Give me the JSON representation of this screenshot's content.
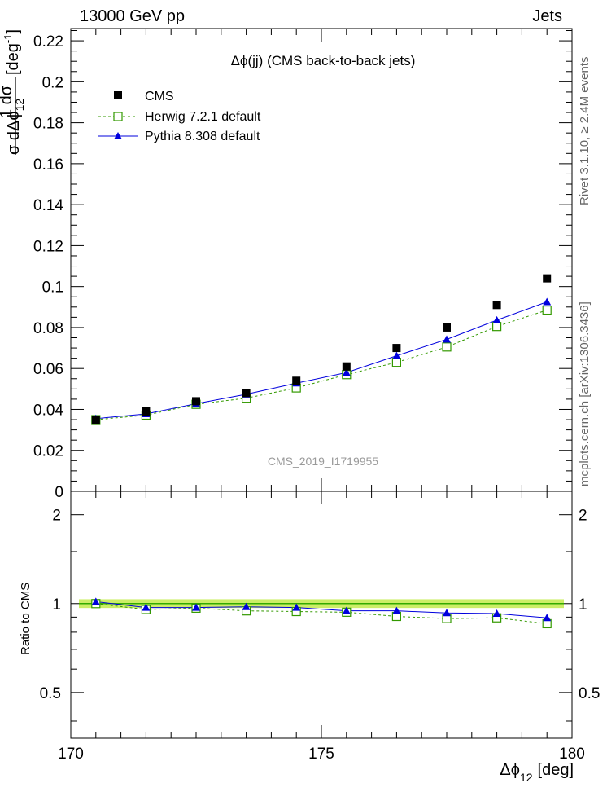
{
  "header": {
    "left": "13000 GeV pp",
    "right": "Jets"
  },
  "side_labels": {
    "rivet": "Rivet 3.1.10, ≥ 2.4M events",
    "mcplots": "mcplots.cern.ch [arXiv:1306.3436]"
  },
  "watermark": "CMS_2019_I1719955",
  "chart_data": [
    {
      "type": "scatter",
      "title": "Δϕ(jj) (CMS back-to-back jets)",
      "ylabel": "1/σ dσ/dΔϕ_12 [deg^-1]",
      "ylabel_parts": {
        "frac_num": "1 dσ",
        "frac_den": "σ dΔϕ",
        "frac_sub": "12",
        "unit": "[deg",
        "unit_sup": "-1",
        "unit_close": "]"
      },
      "xlim": [
        170,
        180
      ],
      "ylim": [
        0,
        0.226
      ],
      "yticks": [
        0,
        0.02,
        0.04,
        0.06,
        0.08,
        0.1,
        0.12,
        0.14,
        0.16,
        0.18,
        0.2,
        0.22
      ],
      "ytick_labels": [
        "0",
        "0.02",
        "0.04",
        "0.06",
        "0.08",
        "0.1",
        "0.12",
        "0.14",
        "0.16",
        "0.18",
        "0.2",
        "0.22"
      ],
      "legend_position": "top-left",
      "x": [
        170.5,
        171.5,
        172.5,
        173.5,
        174.5,
        175.5,
        176.5,
        177.5,
        178.5,
        179.5
      ],
      "series": [
        {
          "name": "CMS",
          "style": "black-square",
          "color": "#000000",
          "values": [
            0.035,
            0.039,
            0.044,
            0.048,
            0.054,
            0.061,
            0.07,
            0.08,
            0.091,
            0.104
          ]
        },
        {
          "name": "Herwig 7.2.1 default",
          "style": "green-open-square-dashed",
          "color": "#339900",
          "values": [
            0.035,
            0.0372,
            0.0425,
            0.0455,
            0.0505,
            0.057,
            0.063,
            0.0705,
            0.0805,
            0.0885
          ]
        },
        {
          "name": "Pythia 8.308 default",
          "style": "blue-triangle-solid",
          "color": "#0000dd",
          "values": [
            0.0355,
            0.0378,
            0.0428,
            0.0474,
            0.0528,
            0.058,
            0.0662,
            0.0742,
            0.0836,
            0.0925
          ]
        }
      ]
    },
    {
      "type": "line",
      "ylabel": "Ratio to CMS",
      "xlabel": "Δϕ_12 [deg]",
      "xlabel_parts": {
        "main": "Δϕ",
        "sub": "12",
        "unit": "[deg]"
      },
      "xlim": [
        170,
        180
      ],
      "xticks": [
        170,
        175,
        180
      ],
      "xtick_labels": [
        "170",
        "175",
        "180"
      ],
      "ylim": [
        0.35,
        2.4
      ],
      "yticks": [
        0.5,
        1,
        2
      ],
      "ytick_labels": [
        "0.5",
        "1",
        "2"
      ],
      "band": {
        "lower": 0.985,
        "upper": 1.015,
        "color": "#ccee66"
      },
      "x": [
        170.5,
        171.5,
        172.5,
        173.5,
        174.5,
        175.5,
        176.5,
        177.5,
        178.5,
        179.5
      ],
      "series": [
        {
          "name": "Herwig 7.2.1 default",
          "color": "#339900",
          "values": [
            1.0,
            0.955,
            0.965,
            0.945,
            0.94,
            0.935,
            0.905,
            0.89,
            0.895,
            0.855
          ]
        },
        {
          "name": "Pythia 8.308 default",
          "color": "#0000dd",
          "values": [
            1.015,
            0.97,
            0.97,
            0.975,
            0.97,
            0.945,
            0.945,
            0.93,
            0.925,
            0.895
          ]
        }
      ]
    }
  ]
}
